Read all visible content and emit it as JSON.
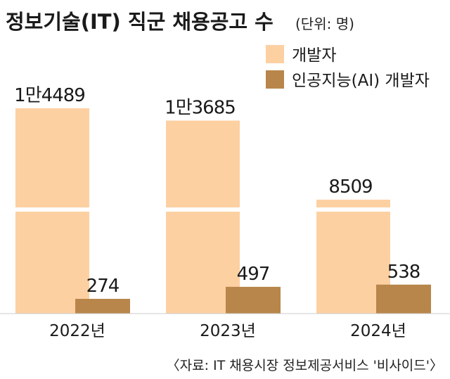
{
  "chart_data": {
    "type": "bar",
    "title": "정보기술(IT) 직군 채용공고 수",
    "unit_note": "(단위: 명)",
    "categories": [
      "2022년",
      "2023년",
      "2024년"
    ],
    "series": [
      {
        "name": "개발자",
        "values": [
          14489,
          13685,
          8509
        ],
        "labels": [
          "1만4489",
          "1만3685",
          "8509"
        ],
        "color": "#FDD0A2"
      },
      {
        "name": "인공지능(AI) 개발자",
        "values": [
          274,
          497,
          538
        ],
        "labels": [
          "274",
          "497",
          "538"
        ],
        "color": "#B8864A"
      }
    ],
    "axis_break": true,
    "grid": false,
    "legend": "top-right",
    "source": "〈자료: IT 채용시장 정보제공서비스 '비사이드'〉"
  }
}
